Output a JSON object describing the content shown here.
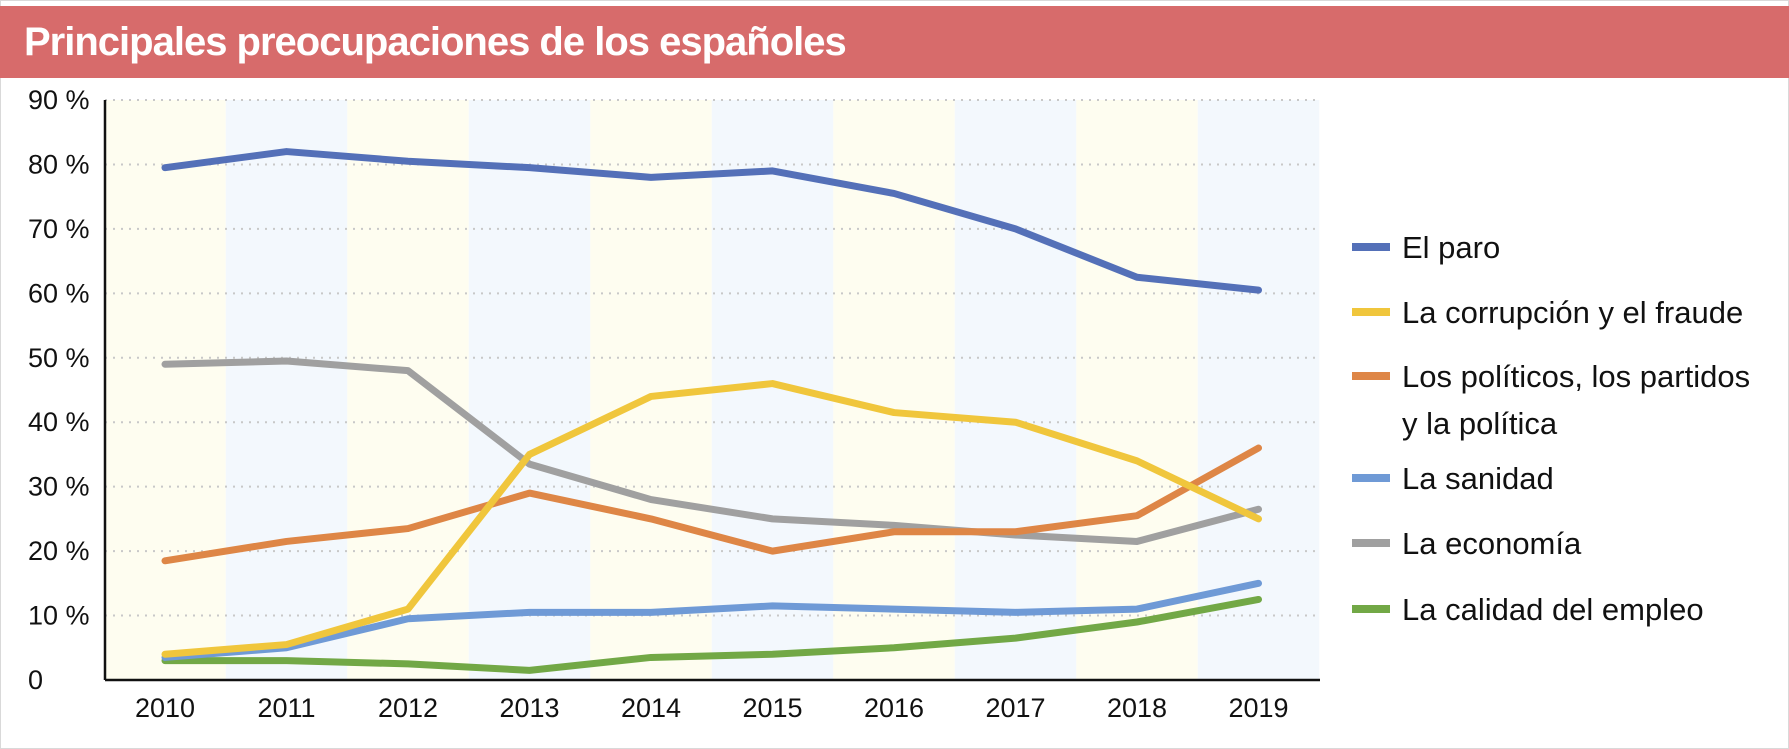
{
  "header": {
    "title": "Principales preocupaciones de los españoles"
  },
  "colors": {
    "title_bar": "#d76b6b",
    "band_warm": "#fefdf0",
    "band_cool": "#f3f8fd",
    "grid": "#c8c8c8",
    "axis": "#111111"
  },
  "chart_data": {
    "type": "line",
    "title": "Principales preocupaciones de los españoles",
    "xlabel": "",
    "ylabel": "",
    "x": [
      "2010",
      "2011",
      "2012",
      "2013",
      "2014",
      "2015",
      "2016",
      "2017",
      "2018",
      "2019"
    ],
    "ylim": [
      0,
      90
    ],
    "yticks": [
      0,
      10,
      20,
      30,
      40,
      50,
      60,
      70,
      80,
      90
    ],
    "ytick_labels": [
      "0",
      "10 %",
      "20 %",
      "30 %",
      "40 %",
      "50 %",
      "60 %",
      "70 %",
      "80 %",
      "90 %"
    ],
    "grid": true,
    "legend_position": "right",
    "series": [
      {
        "name": "El paro",
        "legend_lines": [
          "El paro"
        ],
        "color": "#5470b8",
        "values": [
          79.5,
          82,
          80.5,
          79.5,
          78,
          79,
          75.5,
          70,
          62.5,
          60.5
        ]
      },
      {
        "name": "La corrupción y el fraude",
        "legend_lines": [
          "La corrupción y el fraude"
        ],
        "color": "#f0c63c",
        "values": [
          4,
          5.5,
          11,
          35,
          44,
          46,
          41.5,
          40,
          34,
          25
        ]
      },
      {
        "name": "Los políticos, los partidos y la política",
        "legend_lines": [
          "Los políticos, los partidos",
          "y la política"
        ],
        "color": "#de8646",
        "values": [
          18.5,
          21.5,
          23.5,
          29,
          25,
          20,
          23,
          23,
          25.5,
          36
        ]
      },
      {
        "name": "La sanidad",
        "legend_lines": [
          "La sanidad"
        ],
        "color": "#6f9ad6",
        "values": [
          3.5,
          5,
          9.5,
          10.5,
          10.5,
          11.5,
          11,
          10.5,
          11,
          15
        ]
      },
      {
        "name": "La economía",
        "legend_lines": [
          "La economía"
        ],
        "color": "#a0a0a0",
        "values": [
          49,
          49.5,
          48,
          33.5,
          28,
          25,
          24,
          22.5,
          21.5,
          26.5
        ]
      },
      {
        "name": "La calidad del empleo",
        "legend_lines": [
          "La calidad del empleo"
        ],
        "color": "#72a846",
        "values": [
          3,
          3,
          2.5,
          1.5,
          3.5,
          4,
          5,
          6.5,
          9,
          12.5
        ]
      }
    ]
  }
}
